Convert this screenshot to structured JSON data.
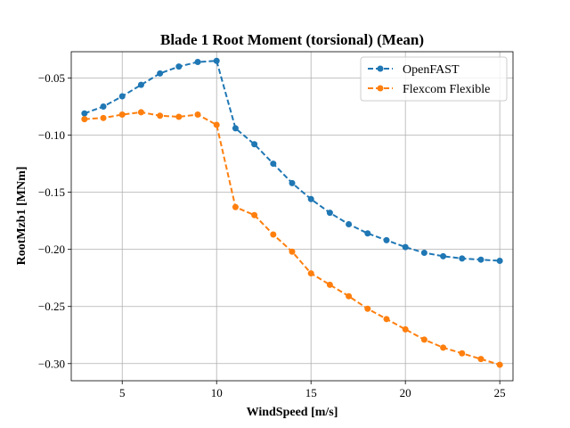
{
  "chart_data": {
    "type": "line",
    "title": "Blade 1 Root Moment (torsional) (Mean)",
    "xlabel": "WindSpeed [m/s]",
    "ylabel": "RootMzb1 [MNm]",
    "xlim": [
      2.3,
      25.7
    ],
    "ylim": [
      -0.315,
      -0.027
    ],
    "xticks": [
      5,
      10,
      15,
      20,
      25
    ],
    "xtick_labels": [
      "5",
      "10",
      "15",
      "20",
      "25"
    ],
    "yticks": [
      -0.05,
      -0.1,
      -0.15,
      -0.2,
      -0.25,
      -0.3
    ],
    "ytick_labels": [
      "−0.05",
      "−0.10",
      "−0.15",
      "−0.20",
      "−0.25",
      "−0.30"
    ],
    "grid": true,
    "legend_position": "top-right",
    "x": [
      3,
      4,
      5,
      6,
      7,
      8,
      9,
      10,
      11,
      12,
      13,
      14,
      15,
      16,
      17,
      18,
      19,
      20,
      21,
      22,
      23,
      24,
      25
    ],
    "series": [
      {
        "name": "OpenFAST",
        "color": "#1f77b4",
        "values": [
          -0.081,
          -0.075,
          -0.066,
          -0.056,
          -0.046,
          -0.04,
          -0.036,
          -0.035,
          -0.094,
          -0.108,
          -0.125,
          -0.142,
          -0.156,
          -0.168,
          -0.178,
          -0.186,
          -0.192,
          -0.198,
          -0.203,
          -0.206,
          -0.208,
          -0.209,
          -0.21
        ]
      },
      {
        "name": "Flexcom Flexible",
        "color": "#ff7f0e",
        "values": [
          -0.086,
          -0.085,
          -0.082,
          -0.08,
          -0.083,
          -0.084,
          -0.082,
          -0.091,
          -0.163,
          -0.17,
          -0.187,
          -0.202,
          -0.221,
          -0.231,
          -0.241,
          -0.252,
          -0.261,
          -0.27,
          -0.279,
          -0.286,
          -0.291,
          -0.296,
          -0.301
        ]
      }
    ]
  }
}
